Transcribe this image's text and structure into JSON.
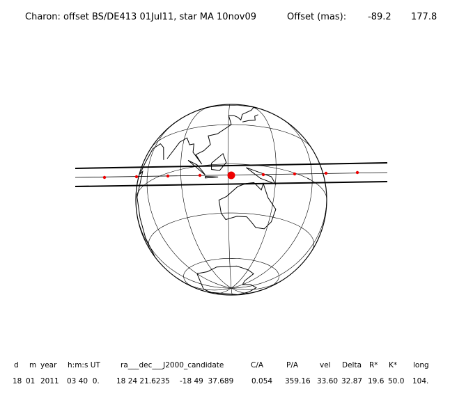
{
  "header": {
    "title": "Charon: offset BS/DE413 01Jul11, star MA 10nov09",
    "offset_label": "Offset (mas):",
    "offset_values": [
      -89.2,
      177.8
    ]
  },
  "table": {
    "columns": [
      "d",
      "m",
      "year",
      "h:m:s UT",
      "ra___dec___J2000_candidate",
      "C/A",
      "P/A",
      "vel",
      "Delta",
      "R*",
      "K*",
      "long"
    ],
    "rows": [
      [
        "18",
        "01",
        "2011",
        "03 40  0.",
        "18 24 21.6235",
        "-18 49  37.689",
        "0.054",
        "359.16",
        "33.60",
        "32.87",
        "19.6",
        "50.0",
        "104."
      ]
    ]
  }
}
